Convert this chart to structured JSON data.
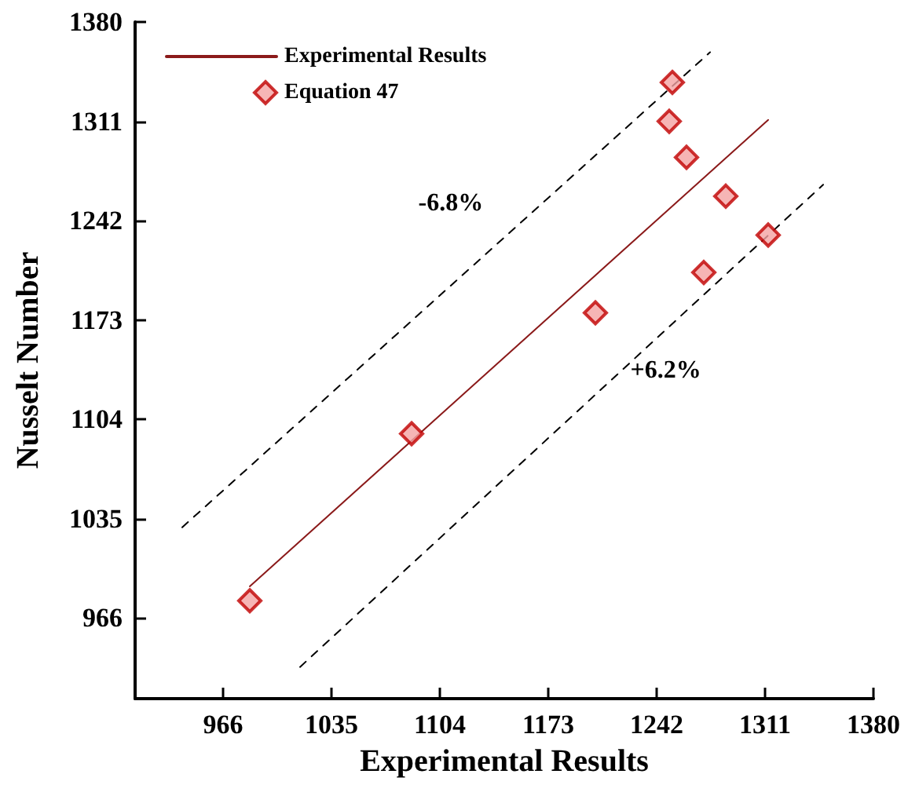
{
  "chart_data": {
    "type": "scatter",
    "xlabel": "Experimental Results",
    "ylabel": "Nusselt Number",
    "xlim": [
      910,
      1380
    ],
    "ylim": [
      910,
      1380
    ],
    "xticks": [
      966,
      1035,
      1104,
      1173,
      1242,
      1311,
      1380
    ],
    "yticks": [
      966,
      1035,
      1104,
      1173,
      1242,
      1311,
      1380
    ],
    "grid": false,
    "legend": "top left",
    "series": [
      {
        "name": "Experimental Results",
        "type": "line",
        "color": "#8b1a1a",
        "marker": "none",
        "line_style": "solid",
        "x": [
          983,
          1313
        ],
        "values": [
          988,
          1312
        ]
      },
      {
        "name": "Equation 47",
        "color": "#f4a3a3",
        "marker": "diamond",
        "x": [
          983,
          1086,
          1203,
          1252,
          1250,
          1261,
          1286,
          1272,
          1313
        ],
        "values": [
          978,
          1094,
          1178,
          1338,
          1311,
          1286,
          1259,
          1206,
          1232
        ]
      },
      {
        "type": "line",
        "color": "#000000",
        "marker": "none",
        "line_style": "dashed",
        "x": [
          940,
          1276
        ],
        "values": [
          1029,
          1359
        ]
      },
      {
        "type": "line",
        "color": "#000000",
        "marker": "none",
        "line_style": "dashed",
        "x": [
          1015,
          1348
        ],
        "values": [
          932,
          1267
        ]
      }
    ],
    "annotations": [
      "-6.8%",
      "+6.2%"
    ]
  }
}
